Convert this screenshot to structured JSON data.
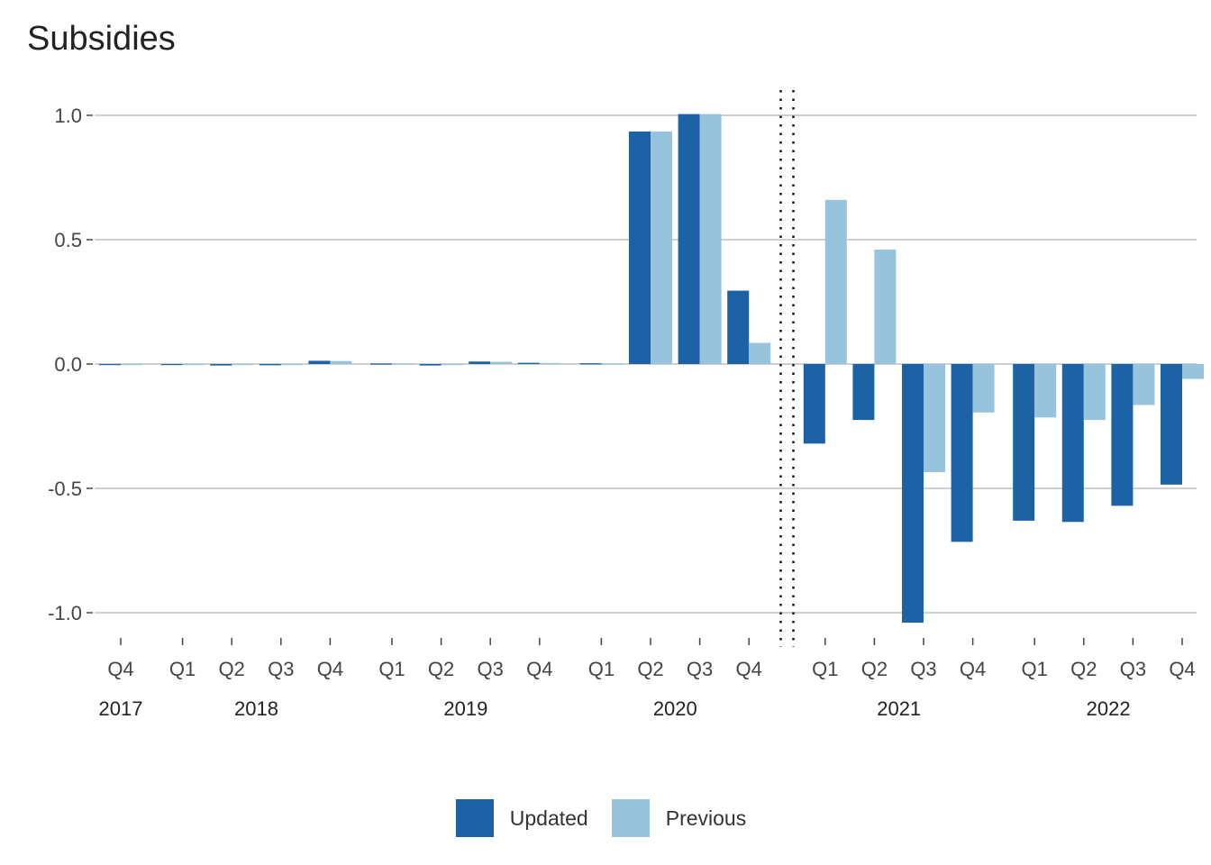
{
  "chart_data": {
    "type": "bar",
    "title": "Subsidies",
    "xlabel": "",
    "ylabel": "",
    "ylim": [
      -1.1,
      1.1
    ],
    "yticks": [
      1.0,
      0.5,
      0.0,
      -0.5,
      -1.0
    ],
    "ytick_labels": [
      "1.0",
      "0.5",
      "0.0",
      "-0.5",
      "-1.0"
    ],
    "grid": true,
    "legend_position": "bottom",
    "categories": [
      "2017 Q4",
      "2018 Q1",
      "2018 Q2",
      "2018 Q3",
      "2018 Q4",
      "2019 Q1",
      "2019 Q2",
      "2019 Q3",
      "2019 Q4",
      "2020 Q1",
      "2020 Q2",
      "2020 Q3",
      "2020 Q4",
      "2021 Q1",
      "2021 Q2",
      "2021 Q3",
      "2021 Q4",
      "2022 Q1",
      "2022 Q2",
      "2022 Q3",
      "2022 Q4"
    ],
    "quarter_labels": [
      "Q4",
      "Q1",
      "Q2",
      "Q3",
      "Q4",
      "Q1",
      "Q2",
      "Q3",
      "Q4",
      "Q1",
      "Q2",
      "Q3",
      "Q4",
      "Q1",
      "Q2",
      "Q3",
      "Q4",
      "Q1",
      "Q2",
      "Q3",
      "Q4"
    ],
    "year_labels": [
      {
        "label": "2017",
        "from": 0,
        "to": 0
      },
      {
        "label": "2018",
        "from": 1,
        "to": 4
      },
      {
        "label": "2019",
        "from": 5,
        "to": 8
      },
      {
        "label": "2020",
        "from": 9,
        "to": 12
      },
      {
        "label": "2021",
        "from": 13,
        "to": 16
      },
      {
        "label": "2022",
        "from": 17,
        "to": 20
      }
    ],
    "forecast_divider_after": "2020 Q4",
    "series": [
      {
        "name": "Updated",
        "color": "#1c62a5",
        "values": [
          -0.003,
          -0.003,
          -0.006,
          -0.005,
          0.013,
          0.002,
          -0.006,
          0.01,
          0.005,
          0.003,
          0.935,
          1.005,
          0.295,
          -0.32,
          -0.225,
          -1.04,
          -0.715,
          -0.63,
          -0.635,
          -0.57,
          -0.485
        ]
      },
      {
        "name": "Previous",
        "color": "#97c3dd",
        "values": [
          -0.002,
          -0.002,
          -0.004,
          -0.004,
          0.012,
          0.002,
          -0.004,
          0.009,
          0.004,
          0.002,
          0.935,
          1.005,
          0.085,
          0.66,
          0.46,
          -0.435,
          -0.195,
          -0.215,
          -0.225,
          -0.165,
          -0.06
        ]
      }
    ]
  }
}
